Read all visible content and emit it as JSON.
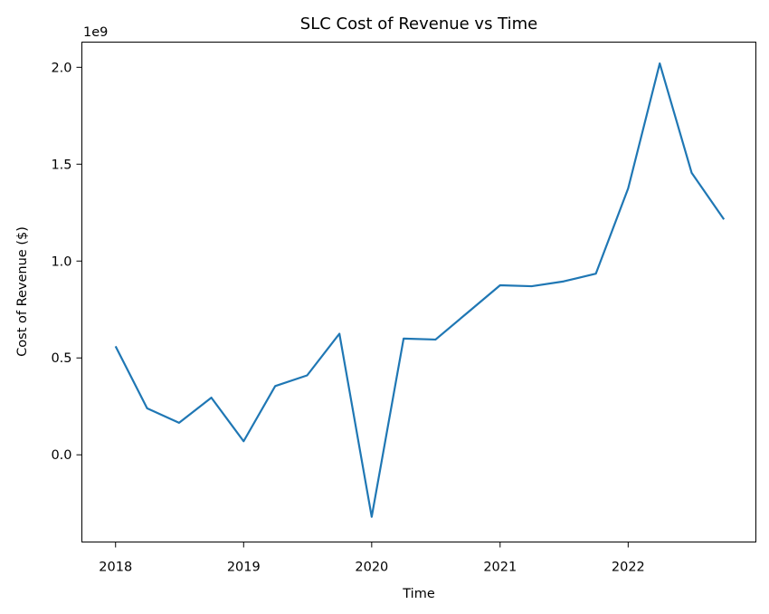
{
  "chart_data": {
    "type": "line",
    "title": "SLC Cost of Revenue vs Time",
    "xlabel": "Time",
    "ylabel": "Cost of Revenue ($)",
    "y_offset_label": "1e9",
    "grid": false,
    "legend": "none",
    "xlim": [
      "2017-09-27",
      "2022-12-31"
    ],
    "ylim": [
      -0.45,
      2.13
    ],
    "y_scale_note": "values in units of 1e9 dollars",
    "x_ticks": [
      {
        "value": "2018-01-01",
        "label": "2018"
      },
      {
        "value": "2019-01-01",
        "label": "2019"
      },
      {
        "value": "2020-01-01",
        "label": "2020"
      },
      {
        "value": "2021-01-01",
        "label": "2021"
      },
      {
        "value": "2022-01-01",
        "label": "2022"
      }
    ],
    "y_ticks": [
      {
        "value": 0.0,
        "label": "0.0"
      },
      {
        "value": 0.5,
        "label": "0.5"
      },
      {
        "value": 1.0,
        "label": "1.0"
      },
      {
        "value": 1.5,
        "label": "1.5"
      },
      {
        "value": 2.0,
        "label": "2.0"
      }
    ],
    "series": [
      {
        "color": "#1f77b4",
        "points": [
          {
            "x": "2018-01-01",
            "y": 0.56
          },
          {
            "x": "2018-04-01",
            "y": 0.24
          },
          {
            "x": "2018-07-01",
            "y": 0.165
          },
          {
            "x": "2018-10-01",
            "y": 0.295
          },
          {
            "x": "2019-01-01",
            "y": 0.07
          },
          {
            "x": "2019-04-01",
            "y": 0.355
          },
          {
            "x": "2019-07-01",
            "y": 0.41
          },
          {
            "x": "2019-10-01",
            "y": 0.625
          },
          {
            "x": "2020-01-01",
            "y": -0.32
          },
          {
            "x": "2020-04-01",
            "y": 0.6
          },
          {
            "x": "2020-07-01",
            "y": 0.595
          },
          {
            "x": "2020-10-01",
            "y": 0.735
          },
          {
            "x": "2021-01-01",
            "y": 0.875
          },
          {
            "x": "2021-04-01",
            "y": 0.87
          },
          {
            "x": "2021-07-01",
            "y": 0.895
          },
          {
            "x": "2021-10-01",
            "y": 0.935
          },
          {
            "x": "2022-01-01",
            "y": 1.375
          },
          {
            "x": "2022-04-01",
            "y": 2.02
          },
          {
            "x": "2022-07-01",
            "y": 1.455
          },
          {
            "x": "2022-10-01",
            "y": 1.215
          }
        ]
      }
    ]
  }
}
